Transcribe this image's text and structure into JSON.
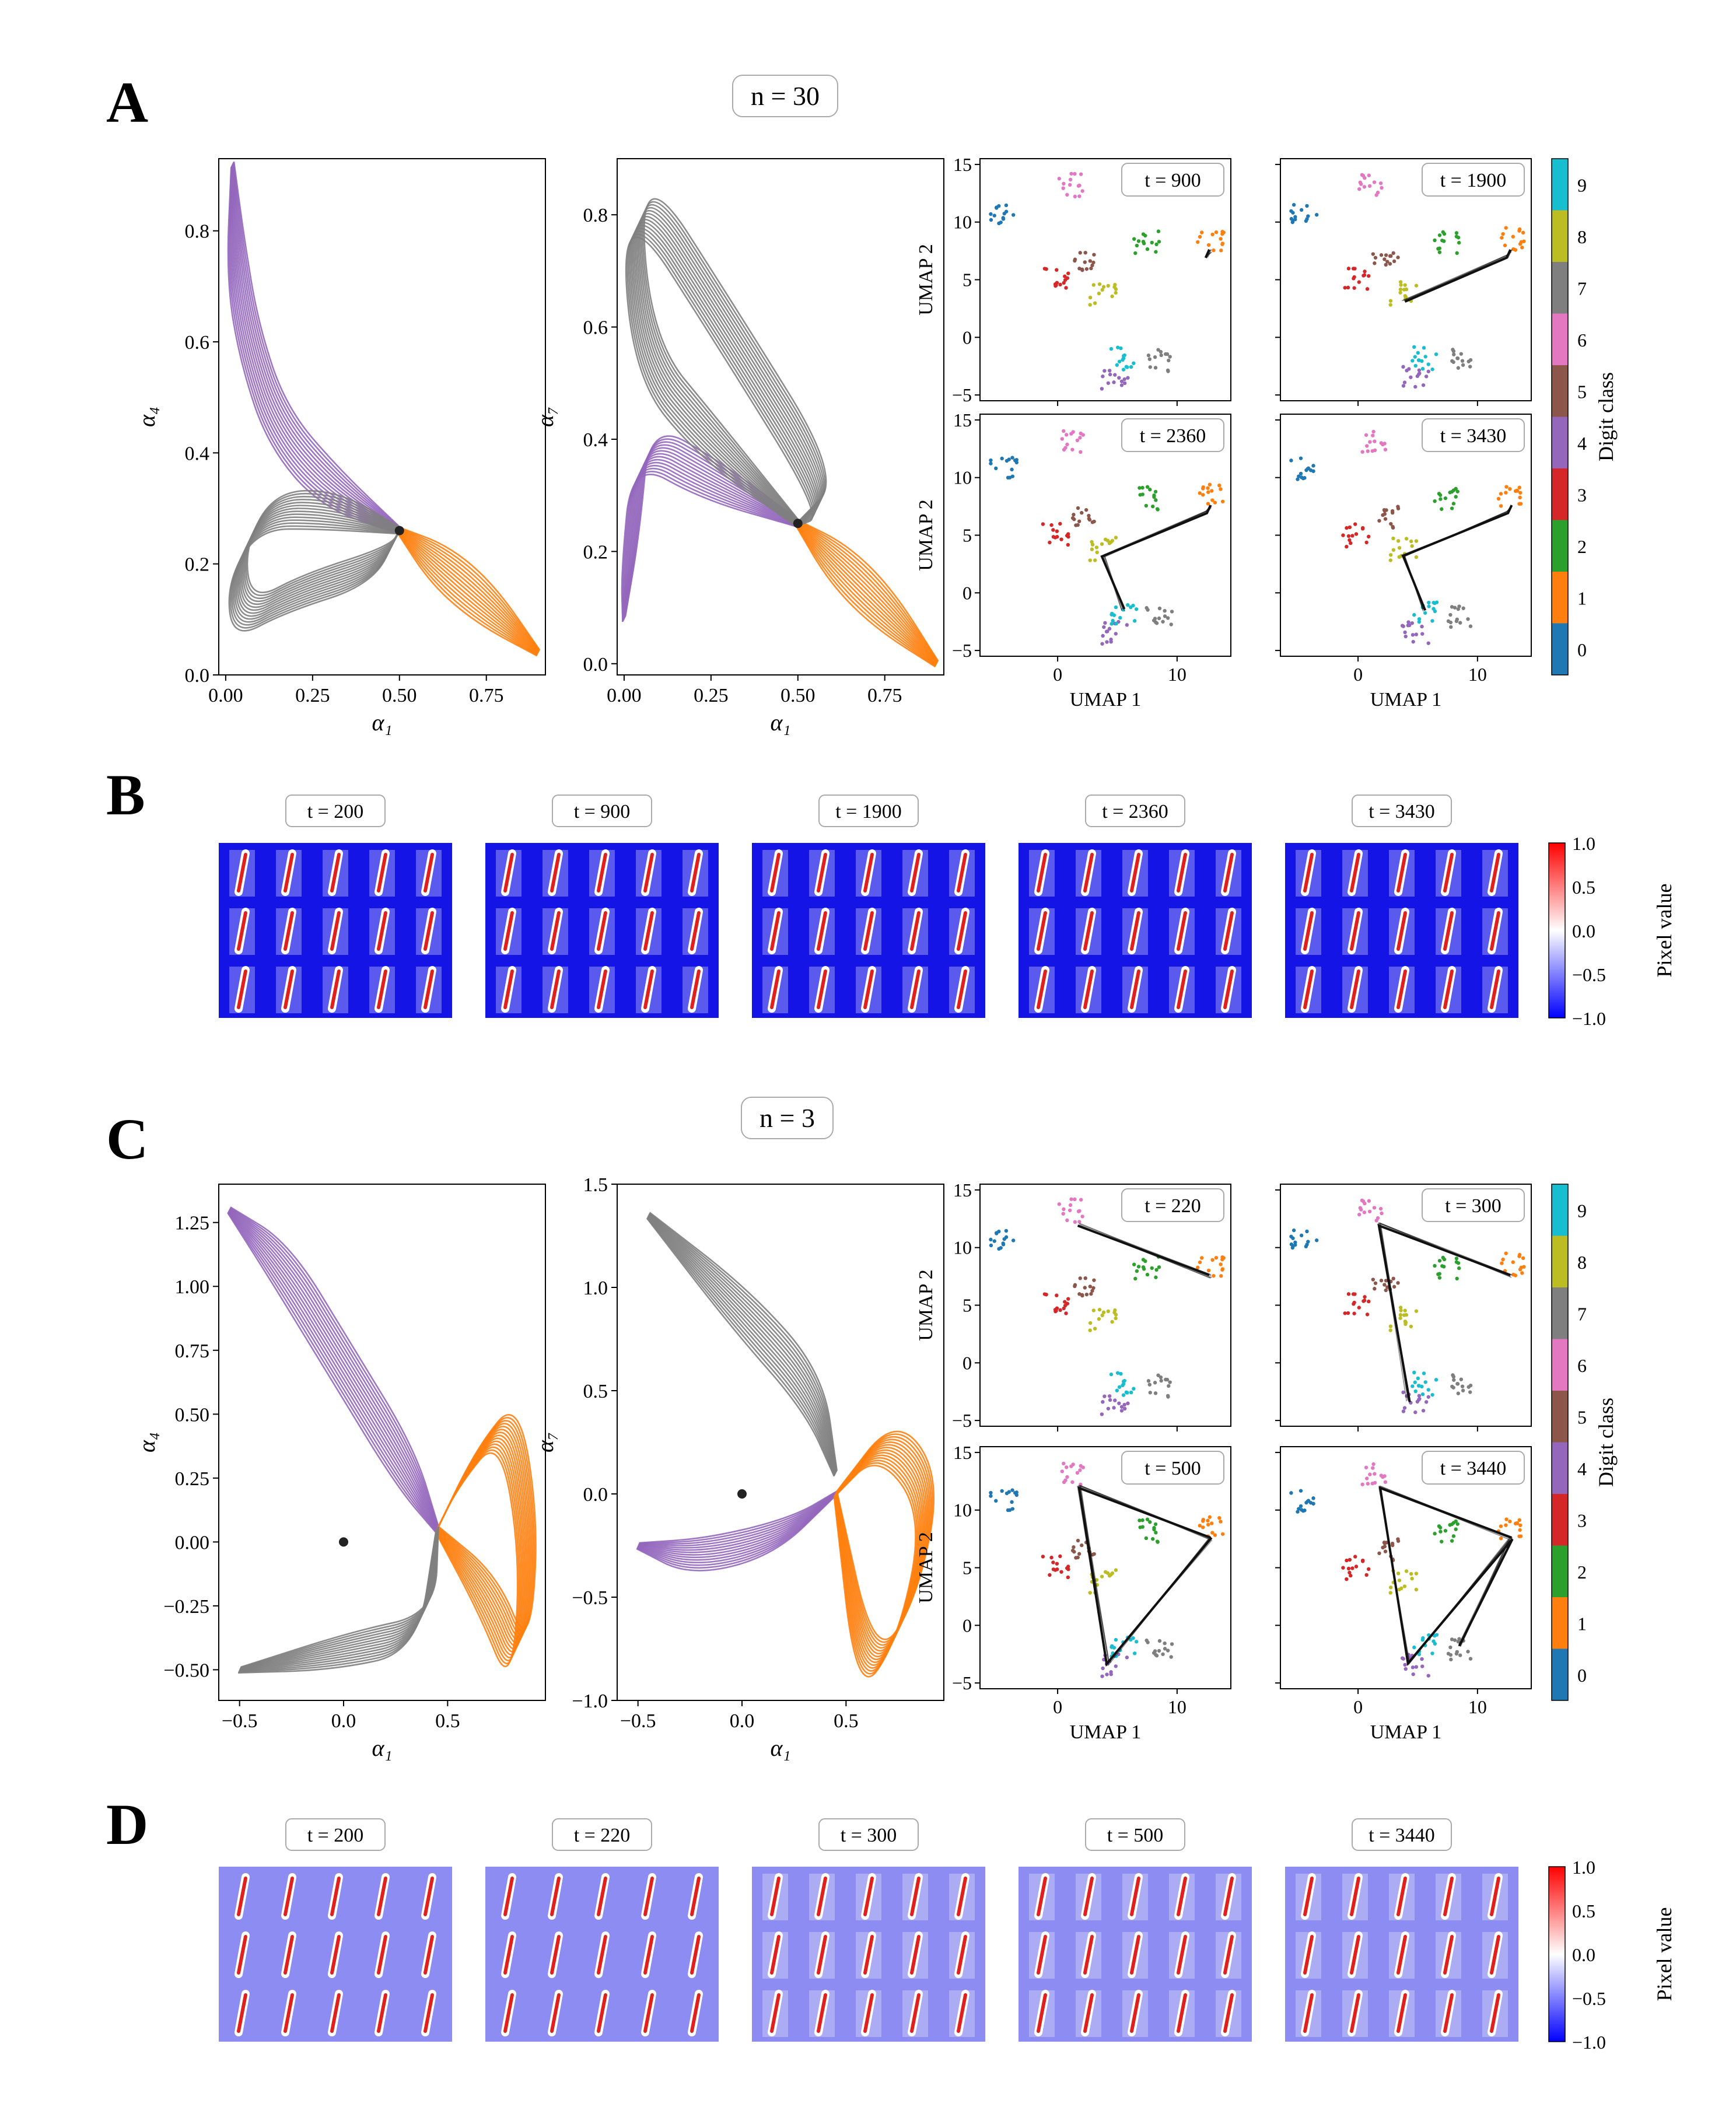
{
  "panels": {
    "A": {
      "letter": "A",
      "n_label": "n = 30"
    },
    "B": {
      "letter": "B"
    },
    "C": {
      "letter": "C",
      "n_label": "n = 3"
    },
    "D": {
      "letter": "D"
    }
  },
  "colorbars": {
    "digit": {
      "label": "Digit class",
      "ticks": [
        "0",
        "1",
        "2",
        "3",
        "4",
        "5",
        "6",
        "7",
        "8",
        "9"
      ],
      "colors": [
        "#1f77b4",
        "#ff7f0e",
        "#2ca02c",
        "#d62728",
        "#9467bd",
        "#8c564b",
        "#e377c2",
        "#7f7f7f",
        "#bcbd22",
        "#17becf"
      ]
    },
    "pixel": {
      "label": "Pixel value",
      "ticks": [
        "1.0",
        "0.5",
        "0.0",
        "−0.5",
        "−1.0"
      ]
    }
  },
  "umap_axes": {
    "xlabel": "UMAP 1",
    "ylabel": "UMAP 2",
    "xticks": [
      "0",
      "10"
    ],
    "yticks": [
      "15",
      "10",
      "5",
      "0",
      "−5"
    ]
  },
  "chart_data": [
    {
      "panel": "A-left",
      "type": "line",
      "xlabel": "α₁",
      "ylabel": "α₄",
      "xlim": [
        -0.02,
        0.92
      ],
      "ylim": [
        0.0,
        0.93
      ],
      "xticks": [
        "0.00",
        "0.25",
        "0.50",
        "0.75"
      ],
      "yticks": [
        "0.0",
        "0.2",
        "0.4",
        "0.6",
        "0.8"
      ],
      "fixed_point": [
        0.5,
        0.26
      ],
      "series": [
        {
          "color": "#9467bd",
          "values": [
            [
              0.5,
              0.26
            ],
            [
              0.3,
              0.34
            ],
            [
              0.15,
              0.45
            ],
            [
              0.07,
              0.6
            ],
            [
              0.03,
              0.75
            ],
            [
              0.02,
              0.92
            ]
          ]
        },
        {
          "color": "#ff7f0e",
          "values": [
            [
              0.5,
              0.26
            ],
            [
              0.62,
              0.2
            ],
            [
              0.75,
              0.13
            ],
            [
              0.9,
              0.04
            ]
          ]
        },
        {
          "color": "#7f7f7f",
          "values": [
            [
              0.5,
              0.26
            ],
            [
              0.3,
              0.3
            ],
            [
              0.12,
              0.3
            ],
            [
              0.03,
              0.2
            ],
            [
              0.05,
              0.1
            ],
            [
              0.2,
              0.15
            ],
            [
              0.45,
              0.2
            ],
            [
              0.5,
              0.26
            ]
          ]
        }
      ]
    },
    {
      "panel": "A-mid",
      "type": "line",
      "xlabel": "α₁",
      "ylabel": "α₇",
      "xlim": [
        -0.02,
        0.92
      ],
      "ylim": [
        -0.02,
        0.9
      ],
      "xticks": [
        "0.00",
        "0.25",
        "0.50",
        "0.75"
      ],
      "yticks": [
        "0.0",
        "0.2",
        "0.4",
        "0.6",
        "0.8"
      ],
      "fixed_point": [
        0.5,
        0.25
      ],
      "series": [
        {
          "color": "#9467bd",
          "values": [
            [
              0.5,
              0.25
            ],
            [
              0.25,
              0.33
            ],
            [
              0.05,
              0.4
            ],
            [
              0.02,
              0.2
            ],
            [
              0.0,
              0.08
            ]
          ]
        },
        {
          "color": "#ff7f0e",
          "values": [
            [
              0.5,
              0.25
            ],
            [
              0.62,
              0.18
            ],
            [
              0.75,
              0.1
            ],
            [
              0.9,
              0.0
            ]
          ]
        },
        {
          "color": "#7f7f7f",
          "values": [
            [
              0.5,
              0.25
            ],
            [
              0.25,
              0.4
            ],
            [
              0.05,
              0.55
            ],
            [
              0.02,
              0.87
            ],
            [
              0.3,
              0.6
            ],
            [
              0.6,
              0.3
            ],
            [
              0.5,
              0.25
            ]
          ]
        }
      ]
    },
    {
      "panel": "C-left",
      "type": "line",
      "xlabel": "α₁",
      "ylabel": "α₄",
      "xlim": [
        -0.6,
        0.97
      ],
      "ylim": [
        -0.62,
        1.4
      ],
      "xticks": [
        "−0.5",
        "0.0",
        "0.5"
      ],
      "yticks": [
        "1.25",
        "1.00",
        "0.75",
        "0.50",
        "0.25",
        "0.00",
        "−0.25",
        "−0.50"
      ],
      "start_point": [
        0.0,
        0.0
      ],
      "series": [
        {
          "color": "#9467bd",
          "values": [
            [
              0.45,
              0.05
            ],
            [
              0.3,
              0.3
            ],
            [
              0.0,
              0.7
            ],
            [
              -0.3,
              1.1
            ],
            [
              -0.55,
              1.3
            ]
          ]
        },
        {
          "color": "#ff7f0e",
          "values": [
            [
              0.45,
              0.05
            ],
            [
              0.6,
              0.3
            ],
            [
              0.8,
              0.5
            ],
            [
              0.9,
              0.0
            ],
            [
              0.85,
              -0.5
            ],
            [
              0.7,
              -0.2
            ],
            [
              0.45,
              0.05
            ]
          ]
        },
        {
          "color": "#7f7f7f",
          "values": [
            [
              0.45,
              0.05
            ],
            [
              0.4,
              -0.35
            ],
            [
              0.0,
              -0.42
            ],
            [
              -0.5,
              -0.5
            ]
          ]
        }
      ]
    },
    {
      "panel": "C-mid",
      "type": "line",
      "xlabel": "α₁",
      "ylabel": "α₇",
      "xlim": [
        -0.6,
        0.97
      ],
      "ylim": [
        -1.0,
        1.5
      ],
      "xticks": [
        "−0.5",
        "0.0",
        "0.5"
      ],
      "yticks": [
        "1.5",
        "1.0",
        "0.5",
        "0.0",
        "−0.5",
        "−1.0"
      ],
      "start_point": [
        0.0,
        0.0
      ],
      "series": [
        {
          "color": "#7f7f7f",
          "values": [
            [
              0.45,
              0.1
            ],
            [
              0.35,
              0.5
            ],
            [
              0.0,
              0.9
            ],
            [
              -0.45,
              1.35
            ]
          ]
        },
        {
          "color": "#9467bd",
          "values": [
            [
              0.45,
              0.0
            ],
            [
              0.2,
              -0.2
            ],
            [
              -0.2,
              -0.3
            ],
            [
              -0.5,
              -0.25
            ]
          ]
        },
        {
          "color": "#ff7f0e",
          "values": [
            [
              0.45,
              0.0
            ],
            [
              0.7,
              0.3
            ],
            [
              0.92,
              0.0
            ],
            [
              0.8,
              -0.6
            ],
            [
              0.6,
              -0.9
            ],
            [
              0.45,
              0.0
            ]
          ]
        }
      ]
    }
  ],
  "umap_titles": {
    "A": [
      "t = 900",
      "t = 1900",
      "t = 2360",
      "t = 3430"
    ],
    "C": [
      "t = 220",
      "t = 300",
      "t = 500",
      "t = 3440"
    ]
  },
  "image_grids": {
    "B": {
      "times": [
        "t = 200",
        "t = 900",
        "t = 1900",
        "t = 2360",
        "t = 3430"
      ]
    },
    "D": {
      "times": [
        "t = 200",
        "t = 220",
        "t = 300",
        "t = 500",
        "t = 3440"
      ]
    }
  }
}
